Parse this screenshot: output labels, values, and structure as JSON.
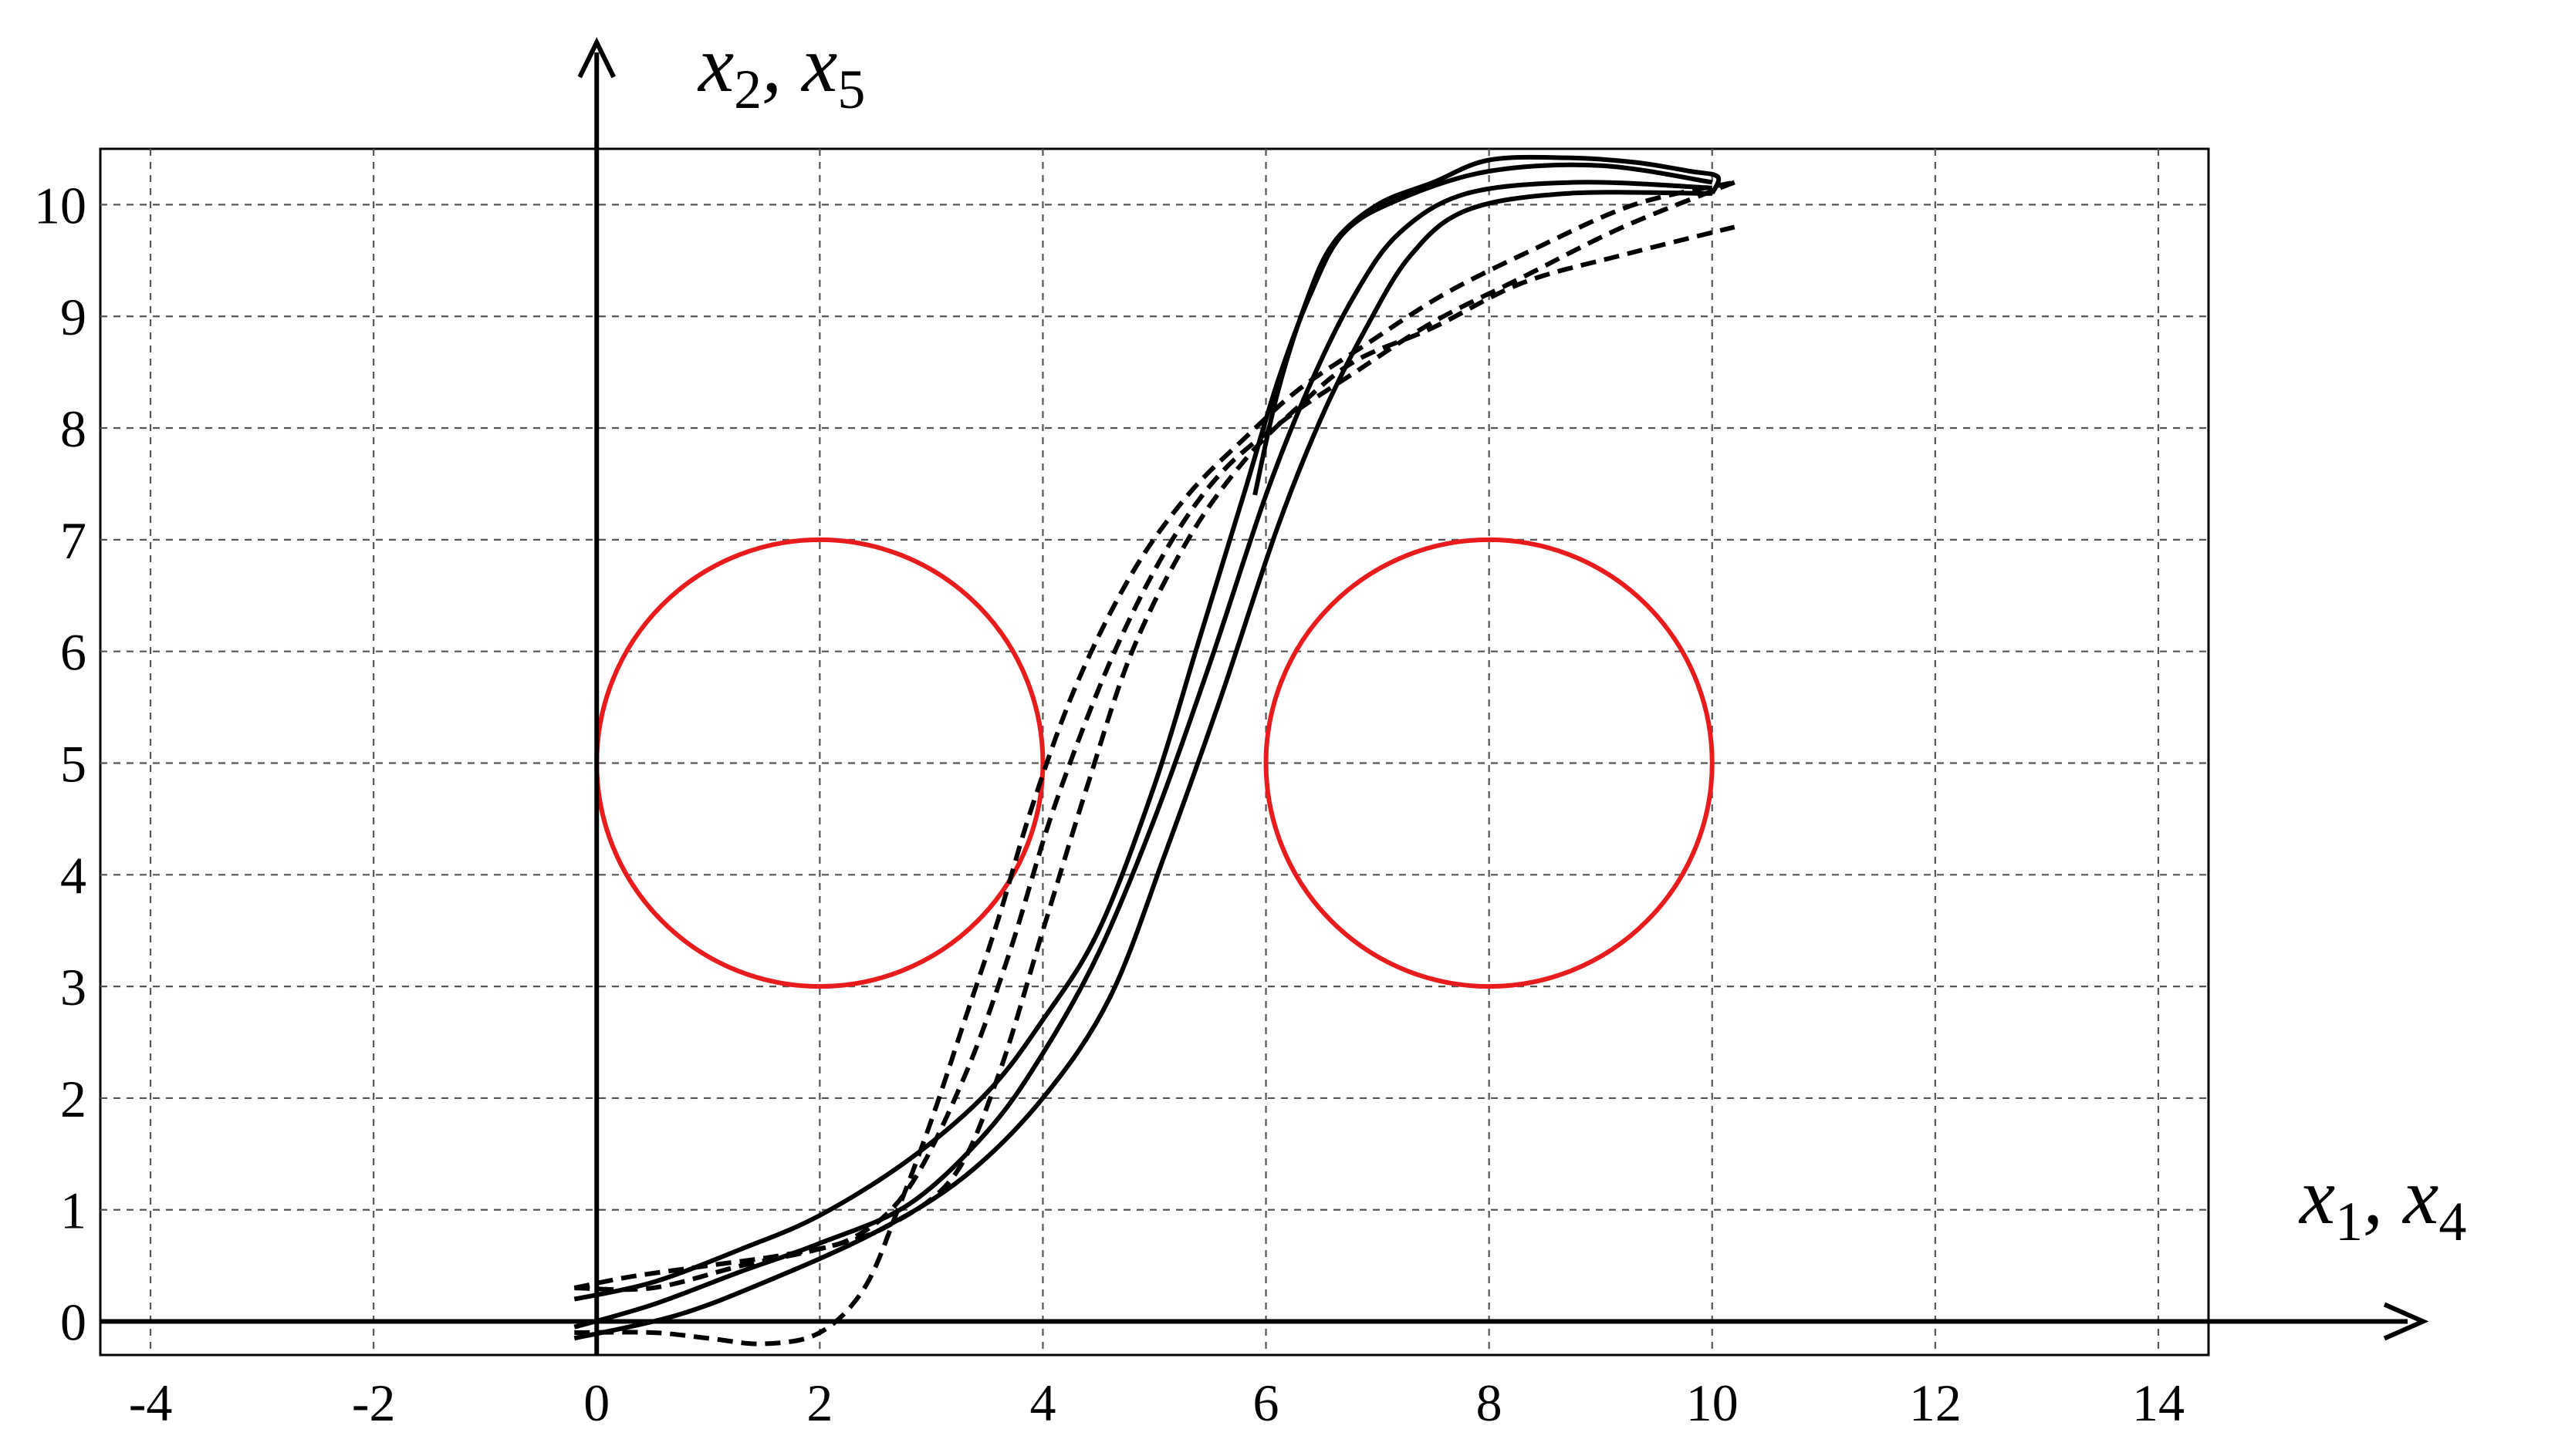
{
  "chart_data": {
    "type": "line",
    "xlabel": {
      "base1": "x",
      "sub1": "1",
      "sep": ", ",
      "base2": "x",
      "sub2": "4"
    },
    "ylabel": {
      "base1": "x",
      "sub1": "2",
      "sep": ", ",
      "base2": "x",
      "sub2": "5"
    },
    "xlim": [
      -4.45,
      14.45
    ],
    "ylim": [
      -0.3,
      10.5
    ],
    "grid": true,
    "x_ticks": [
      "-4",
      "-2",
      "0",
      "2",
      "4",
      "6",
      "8",
      "10",
      "12",
      "14"
    ],
    "y_ticks": [
      "0",
      "1",
      "2",
      "3",
      "4",
      "5",
      "6",
      "7",
      "8",
      "9",
      "10"
    ],
    "circles": [
      {
        "cx": 2,
        "cy": 5,
        "r": 2,
        "color": "#e81c1c"
      },
      {
        "cx": 8,
        "cy": 5,
        "r": 2,
        "color": "#e81c1c"
      }
    ],
    "series": [
      {
        "style": "solid",
        "color": "#000000",
        "points": [
          [
            -0.2,
            0.2
          ],
          [
            0.5,
            0.35
          ],
          [
            1.3,
            0.65
          ],
          [
            2,
            0.95
          ],
          [
            2.8,
            1.45
          ],
          [
            3.5,
            2.05
          ],
          [
            4,
            2.7
          ],
          [
            4.5,
            3.5
          ],
          [
            5,
            4.8
          ],
          [
            5.4,
            6.1
          ],
          [
            5.8,
            7.4
          ],
          [
            6.1,
            8.4
          ],
          [
            6.4,
            9.2
          ],
          [
            6.7,
            9.75
          ],
          [
            7.2,
            10.05
          ],
          [
            8,
            10.3
          ],
          [
            9,
            10.35
          ],
          [
            10,
            10.2
          ]
        ]
      },
      {
        "style": "solid",
        "color": "#000000",
        "points": [
          [
            -0.2,
            -0.05
          ],
          [
            0.5,
            0.15
          ],
          [
            1.3,
            0.45
          ],
          [
            2,
            0.7
          ],
          [
            2.8,
            1.05
          ],
          [
            3.5,
            1.7
          ],
          [
            4,
            2.4
          ],
          [
            4.5,
            3.3
          ],
          [
            5,
            4.5
          ],
          [
            5.5,
            5.9
          ],
          [
            6,
            7.4
          ],
          [
            6.4,
            8.4
          ],
          [
            6.8,
            9.2
          ],
          [
            7.2,
            9.75
          ],
          [
            7.8,
            10.1
          ],
          [
            8.8,
            10.2
          ],
          [
            10,
            10.15
          ]
        ]
      },
      {
        "style": "solid",
        "color": "#000000",
        "points": [
          [
            -0.2,
            -0.15
          ],
          [
            0.7,
            0.05
          ],
          [
            1.5,
            0.35
          ],
          [
            2.5,
            0.8
          ],
          [
            3.3,
            1.3
          ],
          [
            4,
            2
          ],
          [
            4.6,
            2.9
          ],
          [
            5.1,
            4.2
          ],
          [
            5.6,
            5.6
          ],
          [
            6.1,
            7.1
          ],
          [
            6.5,
            8.1
          ],
          [
            6.9,
            8.9
          ],
          [
            7.3,
            9.55
          ],
          [
            7.8,
            9.95
          ],
          [
            8.7,
            10.1
          ],
          [
            10,
            10.1
          ]
        ]
      },
      {
        "style": "solid",
        "color": "#000000",
        "points": [
          [
            10,
            10.1
          ],
          [
            10.05,
            10.25
          ],
          [
            9.8,
            10.3
          ],
          [
            9.3,
            10.38
          ],
          [
            8.7,
            10.42
          ],
          [
            8.0,
            10.4
          ],
          [
            7.5,
            10.2
          ],
          [
            7.0,
            10.0
          ],
          [
            6.6,
            9.65
          ],
          [
            6.35,
            9.1
          ],
          [
            6.1,
            8.3
          ],
          [
            5.9,
            7.4
          ]
        ]
      },
      {
        "style": "dashed",
        "color": "#000000",
        "points": [
          [
            -0.2,
            0.3
          ],
          [
            0.5,
            0.3
          ],
          [
            1.3,
            0.5
          ],
          [
            2,
            0.65
          ],
          [
            2.6,
            0.85
          ],
          [
            3.2,
            1.3
          ],
          [
            3.6,
            2.2
          ],
          [
            4,
            3.5
          ],
          [
            4.4,
            4.8
          ],
          [
            4.8,
            6.0
          ],
          [
            5.3,
            7.0
          ],
          [
            5.8,
            7.7
          ],
          [
            6.3,
            8.2
          ],
          [
            6.8,
            8.6
          ],
          [
            7.5,
            8.9
          ],
          [
            8.3,
            9.3
          ],
          [
            9.2,
            9.55
          ],
          [
            10.2,
            9.8
          ]
        ]
      },
      {
        "style": "dashed",
        "color": "#000000",
        "points": [
          [
            -0.2,
            0.3
          ],
          [
            0.3,
            0.4
          ],
          [
            1.0,
            0.5
          ],
          [
            1.7,
            0.6
          ],
          [
            2.3,
            0.75
          ],
          [
            2.8,
            1.2
          ],
          [
            3.3,
            2.2
          ],
          [
            3.7,
            3.3
          ],
          [
            4.1,
            4.6
          ],
          [
            4.6,
            5.9
          ],
          [
            5.1,
            6.9
          ],
          [
            5.6,
            7.6
          ],
          [
            6.2,
            8.1
          ],
          [
            6.8,
            8.5
          ],
          [
            7.5,
            8.95
          ],
          [
            8.3,
            9.35
          ],
          [
            9.2,
            9.8
          ],
          [
            10.2,
            10.2
          ]
        ]
      },
      {
        "style": "dashed",
        "color": "#000000",
        "points": [
          [
            -0.2,
            -0.1
          ],
          [
            0.5,
            -0.1
          ],
          [
            1.0,
            -0.15
          ],
          [
            1.5,
            -0.2
          ],
          [
            2.0,
            -0.1
          ],
          [
            2.4,
            0.3
          ],
          [
            2.7,
            1.0
          ],
          [
            3.0,
            1.8
          ],
          [
            3.3,
            2.7
          ],
          [
            3.6,
            3.6
          ],
          [
            3.9,
            4.6
          ],
          [
            4.3,
            5.7
          ],
          [
            4.8,
            6.7
          ],
          [
            5.3,
            7.4
          ],
          [
            5.8,
            7.9
          ],
          [
            6.3,
            8.35
          ],
          [
            6.9,
            8.75
          ],
          [
            7.6,
            9.2
          ],
          [
            8.4,
            9.6
          ],
          [
            9.3,
            10.0
          ],
          [
            10.2,
            10.2
          ]
        ]
      }
    ]
  }
}
